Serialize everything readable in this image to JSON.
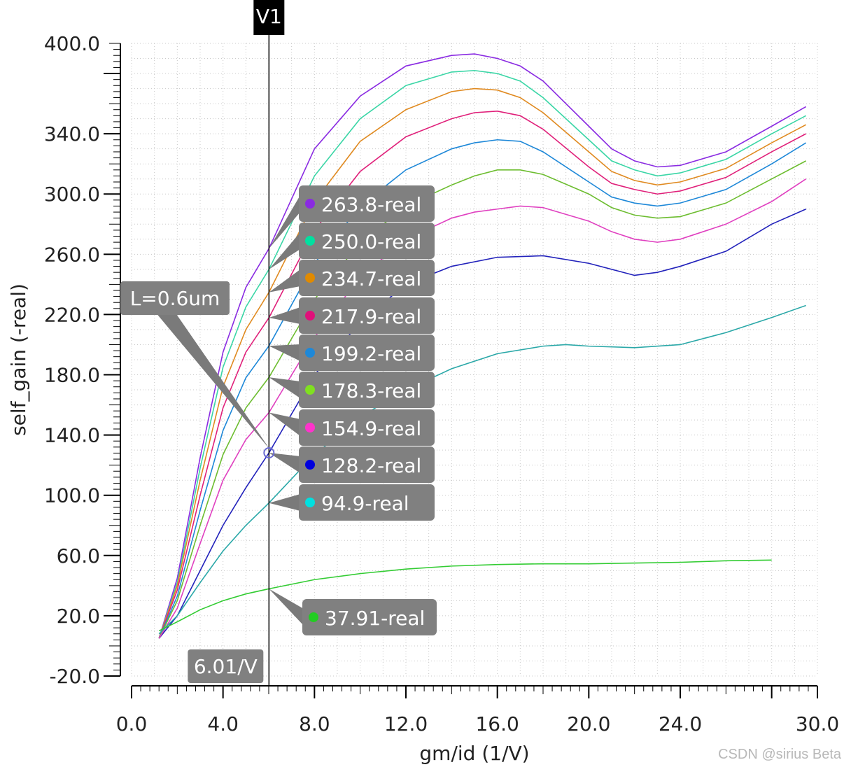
{
  "chart_data": {
    "type": "line",
    "xlabel": "gm/id (1/V)",
    "ylabel": "self_gain (-real)",
    "xlim": [
      0.0,
      30.0
    ],
    "ylim": [
      -20.0,
      400.0
    ],
    "x_ticks": [
      "0.0",
      "4.0",
      "8.0",
      "12.0",
      "16.0",
      "20.0",
      "24.0",
      "30.0"
    ],
    "x_tick_values": [
      0,
      4,
      8,
      12,
      16,
      20,
      24,
      30
    ],
    "y_ticks": [
      "400.0",
      "340.0",
      "300.0",
      "260.0",
      "220.0",
      "180.0",
      "140.0",
      "100.0",
      "60.0",
      "20.0",
      "-20.0"
    ],
    "y_tick_values": [
      400,
      340,
      300,
      260,
      220,
      180,
      140,
      100,
      60,
      20,
      -20
    ],
    "grid": true,
    "cursor": {
      "label": "V1",
      "x": 6.01,
      "x_readout": "6.01/V"
    },
    "annotation": {
      "text": "L=0.6um",
      "target": [
        6.01,
        128.2
      ]
    },
    "series": [
      {
        "name": "L=0.6um",
        "color": "#2222bb",
        "marker_label": "128.2-real",
        "x": [
          1.2,
          2,
          3,
          4,
          5,
          6.01,
          8,
          10,
          12,
          14,
          16,
          18,
          20,
          22,
          23,
          24,
          26,
          28,
          29.5
        ],
        "y": [
          5,
          20,
          50,
          80,
          105,
          128.2,
          180,
          215,
          240,
          252,
          258,
          259,
          254,
          246,
          248,
          252,
          262,
          280,
          290
        ]
      },
      {
        "name": "series-263.8",
        "color": "#8a2be2",
        "marker_label": "263.8-real",
        "x": [
          1.2,
          2,
          3,
          4,
          5,
          6.01,
          8,
          10,
          12,
          14,
          15,
          16,
          17,
          18,
          20,
          21,
          22,
          23,
          24,
          26,
          28,
          29.5
        ],
        "y": [
          5,
          45,
          125,
          195,
          238,
          263.8,
          330,
          365,
          385,
          392,
          393,
          390,
          385,
          375,
          345,
          330,
          322,
          318,
          319,
          328,
          345,
          358
        ]
      },
      {
        "name": "series-250.0",
        "color": "#3ad6a6",
        "marker_label": "250.0-real",
        "x": [
          1.2,
          2,
          3,
          4,
          5,
          6.01,
          8,
          10,
          12,
          14,
          15,
          16,
          17,
          18,
          20,
          21,
          22,
          23,
          24,
          26,
          28,
          29.5
        ],
        "y": [
          5,
          42,
          118,
          185,
          225,
          250,
          312,
          350,
          372,
          381,
          382,
          380,
          375,
          364,
          336,
          322,
          316,
          312,
          314,
          323,
          340,
          352
        ]
      },
      {
        "name": "series-234.7",
        "color": "#e08a20",
        "marker_label": "234.7-real",
        "x": [
          1.2,
          2,
          3,
          4,
          5,
          6.01,
          8,
          10,
          12,
          14,
          15,
          16,
          17,
          18,
          20,
          21,
          22,
          23,
          24,
          26,
          28,
          29.5
        ],
        "y": [
          5,
          40,
          110,
          172,
          210,
          234.7,
          295,
          335,
          356,
          368,
          370,
          369,
          364,
          354,
          328,
          315,
          309,
          306,
          308,
          317,
          334,
          346
        ]
      },
      {
        "name": "series-217.9",
        "color": "#e0207a",
        "marker_label": "217.9-real",
        "x": [
          1.2,
          2,
          3,
          4,
          5,
          6.01,
          8,
          10,
          12,
          14,
          15,
          16,
          17,
          18,
          20,
          21,
          22,
          23,
          24,
          26,
          28,
          29.5
        ],
        "y": [
          5,
          37,
          100,
          158,
          195,
          217.9,
          276,
          315,
          338,
          350,
          354,
          355,
          352,
          343,
          318,
          307,
          303,
          300,
          302,
          311,
          328,
          340
        ]
      },
      {
        "name": "series-199.2",
        "color": "#1e88d8",
        "marker_label": "199.2-real",
        "x": [
          1.2,
          2,
          3,
          4,
          5,
          6.01,
          8,
          10,
          12,
          14,
          15,
          16,
          17,
          18,
          20,
          21,
          22,
          23,
          24,
          26,
          28,
          29.5
        ],
        "y": [
          5,
          33,
          90,
          143,
          178,
          199.2,
          254,
          292,
          316,
          330,
          334,
          336,
          335,
          328,
          308,
          298,
          294,
          292,
          294,
          303,
          320,
          334
        ]
      },
      {
        "name": "series-178.3",
        "color": "#6dbd30",
        "marker_label": "178.3-real",
        "x": [
          1.2,
          2,
          3,
          4,
          5,
          6.01,
          8,
          10,
          12,
          14,
          15,
          16,
          17,
          18,
          20,
          21,
          22,
          23,
          24,
          26,
          28,
          29.5
        ],
        "y": [
          5,
          30,
          80,
          127,
          158,
          178.3,
          230,
          268,
          292,
          306,
          312,
          316,
          316,
          313,
          300,
          291,
          286,
          284,
          285,
          294,
          310,
          322
        ]
      },
      {
        "name": "series-154.9",
        "color": "#e040c0",
        "marker_label": "154.9-real",
        "x": [
          1.2,
          2,
          3,
          4,
          5,
          6.01,
          8,
          10,
          12,
          14,
          15,
          16,
          17,
          18,
          20,
          21,
          22,
          23,
          24,
          26,
          28,
          29.5
        ],
        "y": [
          5,
          25,
          68,
          110,
          137,
          154.9,
          205,
          245,
          270,
          284,
          288,
          290,
          292,
          291,
          282,
          275,
          270,
          268,
          270,
          280,
          295,
          310
        ]
      },
      {
        "name": "series-94.9",
        "color": "#2aa8a8",
        "marker_label": "94.9-real",
        "x": [
          1.2,
          2,
          3,
          4,
          5,
          6.01,
          8,
          10,
          12,
          14,
          16,
          18,
          19,
          20,
          22,
          24,
          26,
          28,
          29.5
        ],
        "y": [
          8,
          20,
          42,
          63,
          80,
          94.9,
          127,
          152,
          170,
          184,
          194,
          199,
          200,
          199,
          198,
          200,
          208,
          218,
          226
        ]
      },
      {
        "name": "series-37.91",
        "color": "#33cc33",
        "marker_label": "37.91-real",
        "x": [
          1.2,
          2,
          3,
          4,
          5,
          6.01,
          8,
          10,
          12,
          14,
          16,
          18,
          20,
          22,
          24,
          26,
          28
        ],
        "y": [
          10,
          16,
          24,
          30,
          34.5,
          37.91,
          44,
          48,
          51,
          53,
          54,
          54.5,
          54.5,
          55,
          55.5,
          56.5,
          57
        ]
      }
    ],
    "markers": [
      {
        "label": "263.8-real",
        "value": 263.8,
        "dot_color": "#8a2be2"
      },
      {
        "label": "250.0-real",
        "value": 250.0,
        "dot_color": "#00e0a0"
      },
      {
        "label": "234.7-real",
        "value": 234.7,
        "dot_color": "#e08a00"
      },
      {
        "label": "217.9-real",
        "value": 217.9,
        "dot_color": "#e0107a"
      },
      {
        "label": "199.2-real",
        "value": 199.2,
        "dot_color": "#1e88d8"
      },
      {
        "label": "178.3-real",
        "value": 178.3,
        "dot_color": "#80e020"
      },
      {
        "label": "154.9-real",
        "value": 154.9,
        "dot_color": "#ff33cc"
      },
      {
        "label": "128.2-real",
        "value": 128.2,
        "dot_color": "#0000dd"
      },
      {
        "label": "94.9-real",
        "value": 94.9,
        "dot_color": "#00e0e0"
      },
      {
        "label": "37.91-real",
        "value": 37.91,
        "dot_color": "#22cc22"
      }
    ]
  },
  "watermark": "CSDN @sirius  Beta"
}
